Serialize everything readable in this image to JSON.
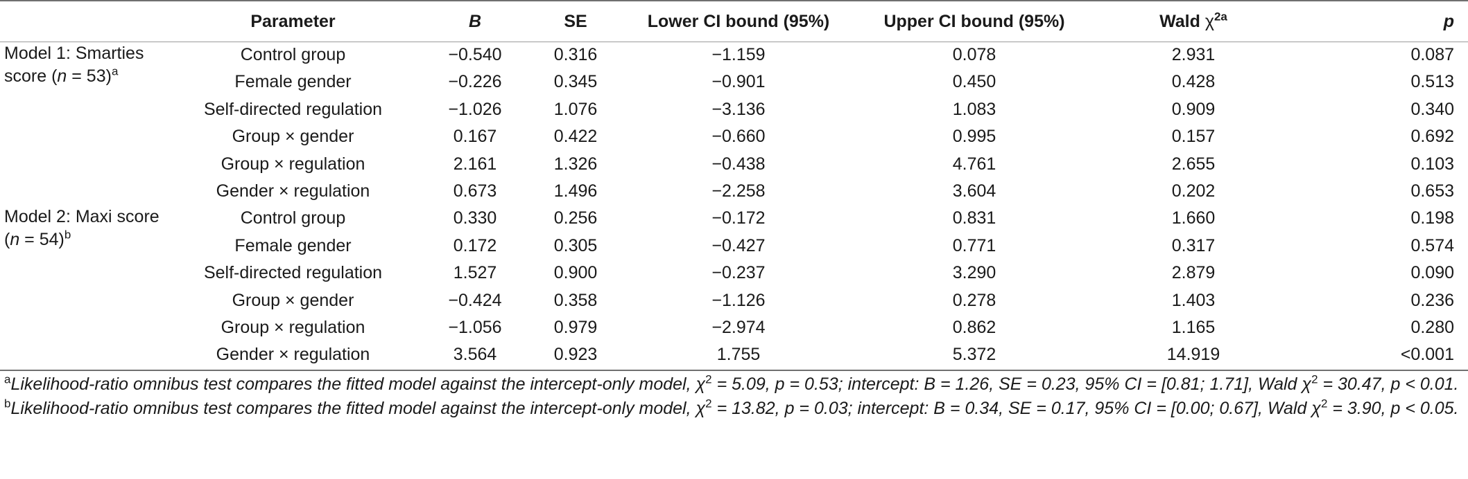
{
  "header": {
    "parameter": "Parameter",
    "B": "B",
    "SE": "SE",
    "lower": "Lower CI bound (95%)",
    "upper": "Upper CI bound (95%)",
    "wald_prefix": "Wald ",
    "wald_chi": "χ",
    "wald_sup": "2a",
    "p": "p"
  },
  "models": [
    {
      "label_line1": "Model 1: Smarties",
      "label_line2_prefix": "score (",
      "label_n": "n",
      "label_line2_suffix": " = 53)",
      "label_sup": "a",
      "rows": [
        {
          "parameter": "Control group",
          "B": "−0.540",
          "SE": "0.316",
          "lower": "−1.159",
          "upper": "0.078",
          "wald": "2.931",
          "p": "0.087"
        },
        {
          "parameter": "Female gender",
          "B": "−0.226",
          "SE": "0.345",
          "lower": "−0.901",
          "upper": "0.450",
          "wald": "0.428",
          "p": "0.513"
        },
        {
          "parameter": "Self-directed regulation",
          "B": "−1.026",
          "SE": "1.076",
          "lower": "−3.136",
          "upper": "1.083",
          "wald": "0.909",
          "p": "0.340"
        },
        {
          "parameter": "Group × gender",
          "B": "0.167",
          "SE": "0.422",
          "lower": "−0.660",
          "upper": "0.995",
          "wald": "0.157",
          "p": "0.692"
        },
        {
          "parameter": "Group × regulation",
          "B": "2.161",
          "SE": "1.326",
          "lower": "−0.438",
          "upper": "4.761",
          "wald": "2.655",
          "p": "0.103"
        },
        {
          "parameter": "Gender × regulation",
          "B": "0.673",
          "SE": "1.496",
          "lower": "−2.258",
          "upper": "3.604",
          "wald": "0.202",
          "p": "0.653"
        }
      ]
    },
    {
      "label_line1": "Model 2: Maxi score",
      "label_line2_prefix": "(",
      "label_n": "n",
      "label_line2_suffix": " = 54)",
      "label_sup": "b",
      "rows": [
        {
          "parameter": "Control group",
          "B": "0.330",
          "SE": "0.256",
          "lower": "−0.172",
          "upper": "0.831",
          "wald": "1.660",
          "p": "0.198"
        },
        {
          "parameter": "Female gender",
          "B": "0.172",
          "SE": "0.305",
          "lower": "−0.427",
          "upper": "0.771",
          "wald": "0.317",
          "p": "0.574"
        },
        {
          "parameter": "Self-directed regulation",
          "B": "1.527",
          "SE": "0.900",
          "lower": "−0.237",
          "upper": "3.290",
          "wald": "2.879",
          "p": "0.090"
        },
        {
          "parameter": "Group × gender",
          "B": "−0.424",
          "SE": "0.358",
          "lower": "−1.126",
          "upper": "0.278",
          "wald": "1.403",
          "p": "0.236"
        },
        {
          "parameter": "Group × regulation",
          "B": "−1.056",
          "SE": "0.979",
          "lower": "−2.974",
          "upper": "0.862",
          "wald": "1.165",
          "p": "0.280"
        },
        {
          "parameter": "Gender × regulation",
          "B": "3.564",
          "SE": "0.923",
          "lower": "1.755",
          "upper": "5.372",
          "wald": "14.919",
          "p": "<0.001"
        }
      ]
    }
  ],
  "notes": {
    "a": {
      "marker": "a",
      "part1": "Likelihood-ratio omnibus test compares the fitted model against the intercept-only model, χ",
      "sup1": "2",
      "part2": " = 5.09, p = 0.53; intercept: B = 1.26, SE = 0.23, 95% CI = [0.81; 1.71], Wald χ",
      "sup2": "2",
      "part3": " = 30.47, p < 0.01."
    },
    "b": {
      "marker": "b",
      "part1": "Likelihood-ratio omnibus test compares the fitted model against the intercept-only model, χ",
      "sup1": "2",
      "part2": " = 13.82, p = 0.03; intercept: B = 0.34, SE = 0.17, 95% CI = [0.00; 0.67], Wald χ",
      "sup2": "2",
      "part3": " = 3.90, p < 0.05."
    }
  }
}
